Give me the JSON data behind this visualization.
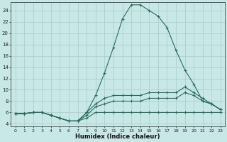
{
  "xlabel": "Humidex (Indice chaleur)",
  "background_color": "#c8e8e8",
  "grid_color": "#aecece",
  "line_color": "#2a6b60",
  "xlim": [
    -0.5,
    23.5
  ],
  "ylim": [
    3.5,
    25.5
  ],
  "yticks": [
    4,
    6,
    8,
    10,
    12,
    14,
    16,
    18,
    20,
    22,
    24
  ],
  "xticks": [
    0,
    1,
    2,
    3,
    4,
    5,
    6,
    7,
    8,
    9,
    10,
    11,
    12,
    13,
    14,
    15,
    16,
    17,
    18,
    19,
    20,
    21,
    22,
    23
  ],
  "lines": [
    {
      "x": [
        0,
        1,
        2,
        3,
        4,
        5,
        6,
        7,
        8,
        9,
        10,
        11,
        12,
        13,
        14,
        15,
        16,
        17,
        18,
        19,
        20,
        21,
        22,
        23
      ],
      "y": [
        5.8,
        5.8,
        6.0,
        6.0,
        5.5,
        5.0,
        4.5,
        4.5,
        5.0,
        6.0,
        6.0,
        6.0,
        6.0,
        6.0,
        6.0,
        6.0,
        6.0,
        6.0,
        6.0,
        6.0,
        6.0,
        6.0,
        6.0,
        6.0
      ]
    },
    {
      "x": [
        0,
        1,
        2,
        3,
        4,
        5,
        6,
        7,
        8,
        9,
        10,
        11,
        12,
        13,
        14,
        15,
        16,
        17,
        18,
        19,
        20,
        21,
        22,
        23
      ],
      "y": [
        5.8,
        5.8,
        6.0,
        6.0,
        5.5,
        5.0,
        4.5,
        4.5,
        5.5,
        7.0,
        7.5,
        8.0,
        8.0,
        8.0,
        8.0,
        8.5,
        8.5,
        8.5,
        8.5,
        9.5,
        9.0,
        8.0,
        7.5,
        6.5
      ]
    },
    {
      "x": [
        0,
        1,
        2,
        3,
        4,
        5,
        6,
        7,
        8,
        9,
        10,
        11,
        12,
        13,
        14,
        15,
        16,
        17,
        18,
        19,
        20,
        21,
        22,
        23
      ],
      "y": [
        5.8,
        5.8,
        6.0,
        6.0,
        5.5,
        5.0,
        4.5,
        4.5,
        6.0,
        7.5,
        8.5,
        9.0,
        9.0,
        9.0,
        9.0,
        9.5,
        9.5,
        9.5,
        9.5,
        10.5,
        9.5,
        8.5,
        7.5,
        6.5
      ]
    },
    {
      "x": [
        0,
        1,
        2,
        3,
        4,
        5,
        6,
        7,
        8,
        9,
        10,
        11,
        12,
        13,
        14,
        15,
        16,
        17,
        18,
        19,
        20,
        21,
        22,
        23
      ],
      "y": [
        5.8,
        5.8,
        6.0,
        6.0,
        5.5,
        5.0,
        4.5,
        4.5,
        6.0,
        9.0,
        13.0,
        17.5,
        22.5,
        25.0,
        25.0,
        24.0,
        23.0,
        21.0,
        17.0,
        13.5,
        11.0,
        8.0,
        7.5,
        6.5
      ]
    }
  ]
}
